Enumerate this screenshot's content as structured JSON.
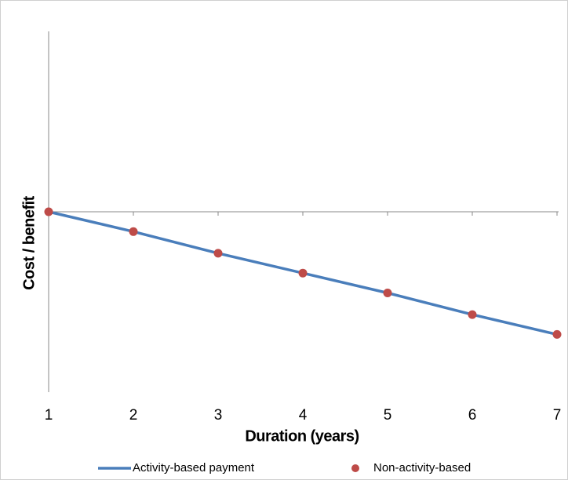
{
  "chart_data": {
    "type": "line",
    "x": [
      1,
      2,
      3,
      4,
      5,
      6,
      7
    ],
    "xlim": [
      1,
      7
    ],
    "xticks": [
      1,
      2,
      3,
      4,
      5,
      6,
      7
    ],
    "ylim": [
      -1,
      1
    ],
    "x_label": "Duration (years)",
    "y_label": "Cost / benefit",
    "legend": "bottom",
    "series": [
      {
        "name": "Activity-based payment",
        "color": "#4a7ebb",
        "mode": "line",
        "values": [
          0,
          -0.11,
          -0.23,
          -0.34,
          -0.45,
          -0.57,
          -0.68
        ]
      },
      {
        "name": "Non-activity-based",
        "color": "#be4b48",
        "mode": "markers",
        "values": [
          0,
          -0.11,
          -0.23,
          -0.34,
          -0.45,
          -0.57,
          -0.68
        ]
      }
    ]
  }
}
